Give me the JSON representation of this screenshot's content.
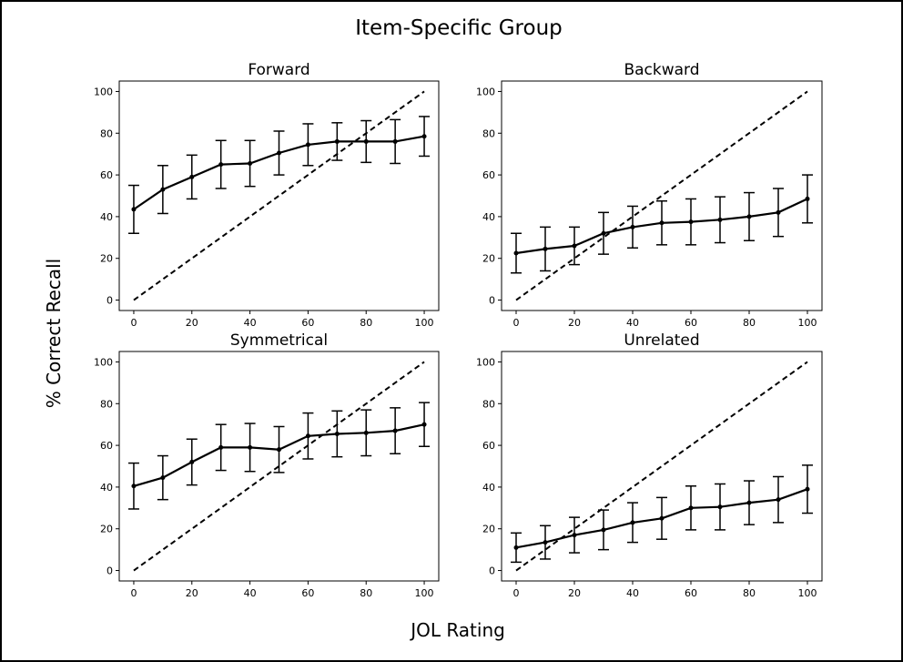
{
  "figure": {
    "title": "Item-Specific Group",
    "xlabel": "JOL Rating",
    "ylabel": "% Correct Recall"
  },
  "chart_data": [
    {
      "type": "line",
      "title": "Forward",
      "x": [
        0,
        10,
        20,
        30,
        40,
        50,
        60,
        70,
        80,
        90,
        100
      ],
      "series": [
        {
          "values": [
            43.5,
            53,
            59,
            65,
            65.5,
            70.5,
            74.5,
            76,
            76,
            76,
            78.5
          ],
          "error": [
            11.5,
            11.5,
            10.5,
            11.5,
            11,
            10.5,
            10,
            9,
            10,
            10.5,
            9.5
          ]
        }
      ],
      "reference_line": {
        "style": "dashed",
        "from": [
          0,
          0
        ],
        "to": [
          100,
          100
        ]
      },
      "xlim": [
        -5,
        105
      ],
      "ylim": [
        -5,
        105
      ],
      "xticks": [
        0,
        20,
        40,
        60,
        80,
        100
      ],
      "yticks": [
        0,
        20,
        40,
        60,
        80,
        100
      ]
    },
    {
      "type": "line",
      "title": "Backward",
      "x": [
        0,
        10,
        20,
        30,
        40,
        50,
        60,
        70,
        80,
        90,
        100
      ],
      "series": [
        {
          "values": [
            22.5,
            24.5,
            26,
            32,
            35,
            37,
            37.5,
            38.5,
            40,
            42,
            48.5
          ],
          "error": [
            9.5,
            10.5,
            9,
            10,
            10,
            10.5,
            11,
            11,
            11.5,
            11.5,
            11.5
          ]
        }
      ],
      "reference_line": {
        "style": "dashed",
        "from": [
          0,
          0
        ],
        "to": [
          100,
          100
        ]
      },
      "xlim": [
        -5,
        105
      ],
      "ylim": [
        -5,
        105
      ],
      "xticks": [
        0,
        20,
        40,
        60,
        80,
        100
      ],
      "yticks": [
        0,
        20,
        40,
        60,
        80,
        100
      ]
    },
    {
      "type": "line",
      "title": "Symmetrical",
      "x": [
        0,
        10,
        20,
        30,
        40,
        50,
        60,
        70,
        80,
        90,
        100
      ],
      "series": [
        {
          "values": [
            40.5,
            44.5,
            52,
            59,
            59,
            58,
            64.5,
            65.5,
            66,
            67,
            70
          ],
          "error": [
            11,
            10.5,
            11,
            11,
            11.5,
            11,
            11,
            11,
            11,
            11,
            10.5
          ]
        }
      ],
      "reference_line": {
        "style": "dashed",
        "from": [
          0,
          0
        ],
        "to": [
          100,
          100
        ]
      },
      "xlim": [
        -5,
        105
      ],
      "ylim": [
        -5,
        105
      ],
      "xticks": [
        0,
        20,
        40,
        60,
        80,
        100
      ],
      "yticks": [
        0,
        20,
        40,
        60,
        80,
        100
      ]
    },
    {
      "type": "line",
      "title": "Unrelated",
      "x": [
        0,
        10,
        20,
        30,
        40,
        50,
        60,
        70,
        80,
        90,
        100
      ],
      "series": [
        {
          "values": [
            11,
            13.5,
            17,
            19.5,
            23,
            25,
            30,
            30.5,
            32.5,
            34,
            39
          ],
          "error": [
            7,
            8,
            8.5,
            9.5,
            9.5,
            10,
            10.5,
            11,
            10.5,
            11,
            11.5
          ]
        }
      ],
      "reference_line": {
        "style": "dashed",
        "from": [
          0,
          0
        ],
        "to": [
          100,
          100
        ]
      },
      "xlim": [
        -5,
        105
      ],
      "ylim": [
        -5,
        105
      ],
      "xticks": [
        0,
        20,
        40,
        60,
        80,
        100
      ],
      "yticks": [
        0,
        20,
        40,
        60,
        80,
        100
      ]
    }
  ]
}
